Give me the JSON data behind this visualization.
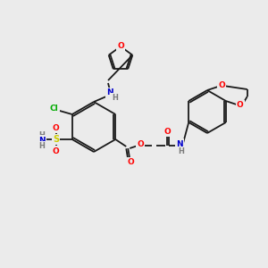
{
  "bg_color": "#ebebeb",
  "bond_color": "#1a1a1a",
  "atom_colors": {
    "O": "#ff0000",
    "N": "#0000cc",
    "S": "#cccc00",
    "Cl": "#00aa00",
    "C": "#1a1a1a",
    "H": "#7a7a7a"
  },
  "figsize": [
    3.0,
    3.0
  ],
  "dpi": 100
}
